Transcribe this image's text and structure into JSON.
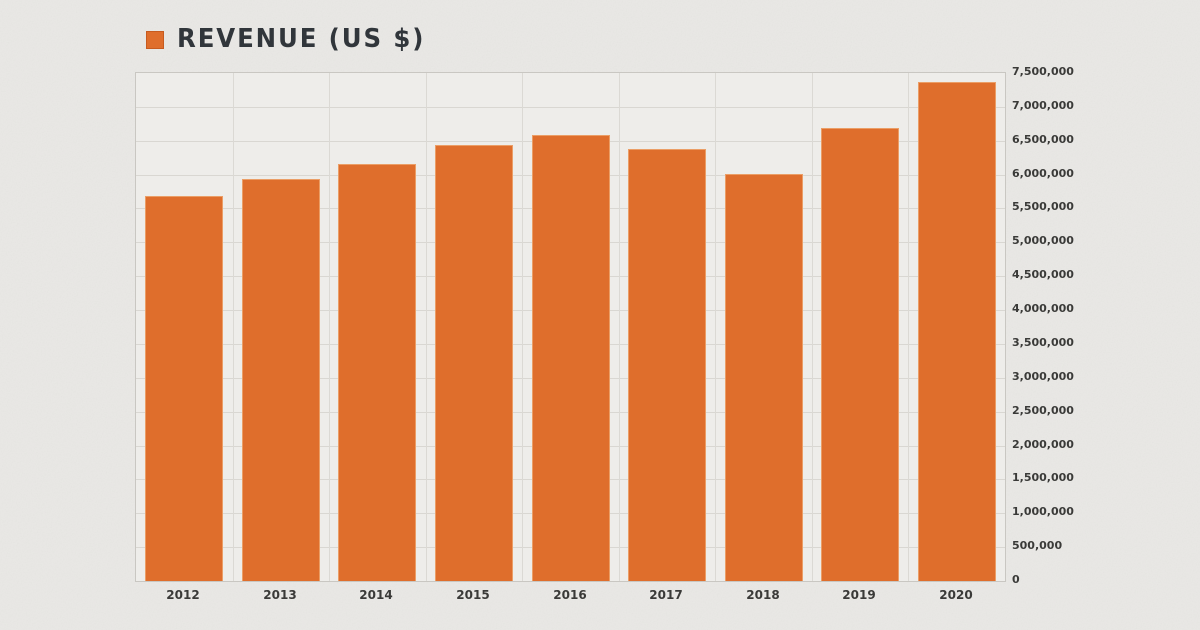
{
  "legend": {
    "label": "REVENUE (US $)",
    "swatch_color": "#DF6E2C",
    "swatch_border_color": "#C75B1F"
  },
  "chart_data": {
    "type": "bar",
    "title": "REVENUE (US $)",
    "categories": [
      "2012",
      "2013",
      "2014",
      "2015",
      "2016",
      "2017",
      "2018",
      "2019",
      "2020"
    ],
    "values": [
      5690000,
      5930000,
      6150000,
      6430000,
      6580000,
      6380000,
      6010000,
      6690000,
      7360000
    ],
    "xlabel": "",
    "ylabel": "",
    "ylim": [
      0,
      7500000
    ],
    "ytick_step": 500000,
    "ytick_labels": [
      "0",
      "500,000",
      "1,000,000",
      "1,500,000",
      "2,000,000",
      "2,500,000",
      "3,000,000",
      "3,500,000",
      "4,000,000",
      "4,500,000",
      "5,000,000",
      "5,500,000",
      "6,000,000",
      "6,500,000",
      "7,000,000",
      "7,500,000"
    ],
    "grid": true,
    "legend_position": "top-left",
    "yaxis_side": "right",
    "bar_color": "#DF6E2C",
    "bar_border_color": "#EB9E66",
    "grid_color": "#D9D7D2",
    "axis_color": "#C9C7C2",
    "tick_text_color": "#3A3A38",
    "background_color": "#E9E8E5",
    "plot_background_color": "#EEEDEA"
  }
}
